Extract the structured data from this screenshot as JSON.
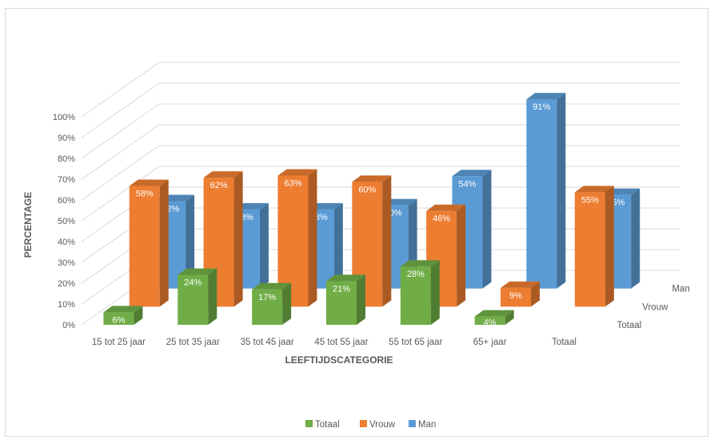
{
  "chart_data": {
    "type": "bar",
    "subtype": "3d-column",
    "xlabel": "LEEFTIJDSCATEGORIE",
    "ylabel": "PERCENTAGE",
    "ylim": [
      0,
      100
    ],
    "y_ticks": [
      "0%",
      "10%",
      "20%",
      "30%",
      "40%",
      "50%",
      "60%",
      "70%",
      "80%",
      "90%",
      "100%"
    ],
    "categories": [
      "15 tot 25 jaar",
      "25 tot 35 jaar",
      "35 tot 45 jaar",
      "45 tot 55 jaar",
      "55 tot 65 jaar",
      "65+ jaar",
      "Totaal"
    ],
    "series": [
      {
        "name": "Totaal",
        "color": "#70ad47",
        "values": [
          6,
          24,
          17,
          21,
          28,
          4,
          null
        ],
        "labels": [
          "6%",
          "24%",
          "17%",
          "21%",
          "28%",
          "4%",
          ""
        ]
      },
      {
        "name": "Vrouw",
        "color": "#ed7d31",
        "values": [
          58,
          62,
          63,
          60,
          46,
          9,
          55
        ],
        "labels": [
          "58%",
          "62%",
          "63%",
          "60%",
          "46%",
          "9%",
          "55%"
        ]
      },
      {
        "name": "Man",
        "color": "#5b9bd5",
        "values": [
          42,
          38,
          38,
          40,
          54,
          91,
          45
        ],
        "labels": [
          "42%",
          "38%",
          "38%",
          "40%",
          "54%",
          "91%",
          "45%"
        ]
      }
    ],
    "legend": {
      "position": "bottom",
      "entries": [
        "Totaal",
        "Vrouw",
        "Man"
      ]
    },
    "grid": true
  }
}
